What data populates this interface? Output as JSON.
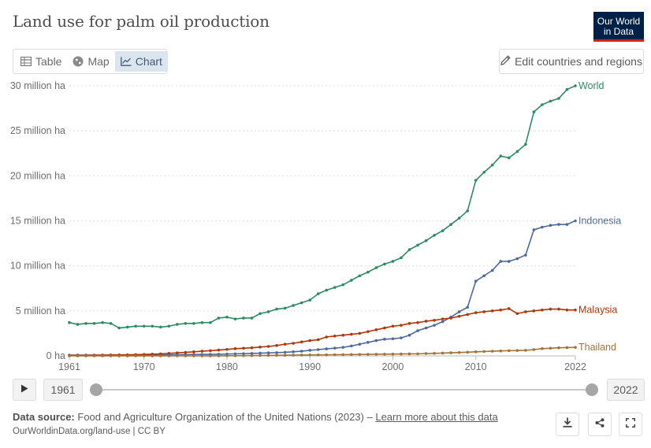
{
  "header": {
    "title": "Land use for palm oil production",
    "logo_line1": "Our World",
    "logo_line2": "in Data"
  },
  "tabs": [
    {
      "label": "Table",
      "icon": "table-icon",
      "active": false
    },
    {
      "label": "Map",
      "icon": "globe-icon",
      "active": false
    },
    {
      "label": "Chart",
      "icon": "line-chart-icon",
      "active": true
    }
  ],
  "edit_button": {
    "label": "Edit countries and regions",
    "icon": "pencil-icon"
  },
  "timeline": {
    "start_year": "1961",
    "end_year": "2022",
    "play_icon": "play-icon"
  },
  "footer": {
    "source_label": "Data source:",
    "source_text": "Food and Agriculture Organization of the United Nations (2023) –",
    "learn_more": "Learn more about this data",
    "url_text": "OurWorldinData.org/land-use | CC BY",
    "icons": [
      "download-icon",
      "share-icon",
      "fullscreen-icon"
    ]
  },
  "chart_data": {
    "type": "line",
    "title": "Land use for palm oil production",
    "xlabel": "",
    "ylabel": "",
    "x_range": [
      1961,
      2022
    ],
    "ylim": [
      0,
      30000000
    ],
    "y_ticks": [
      {
        "value": 0,
        "label": "0 ha"
      },
      {
        "value": 5000000,
        "label": "5 million ha"
      },
      {
        "value": 10000000,
        "label": "10 million ha"
      },
      {
        "value": 15000000,
        "label": "15 million ha"
      },
      {
        "value": 20000000,
        "label": "20 million ha"
      },
      {
        "value": 25000000,
        "label": "25 million ha"
      },
      {
        "value": 30000000,
        "label": "30 million ha"
      }
    ],
    "x_ticks": [
      1961,
      1970,
      1980,
      1990,
      2000,
      2010,
      2022
    ],
    "grid": "horizontal dotted",
    "legend": "end-of-line labels",
    "series": [
      {
        "name": "World",
        "color": "#2e8b61",
        "points": [
          [
            1961,
            3700000
          ],
          [
            1962,
            3500000
          ],
          [
            1963,
            3600000
          ],
          [
            1964,
            3600000
          ],
          [
            1965,
            3700000
          ],
          [
            1966,
            3600000
          ],
          [
            1967,
            3100000
          ],
          [
            1968,
            3200000
          ],
          [
            1969,
            3300000
          ],
          [
            1970,
            3300000
          ],
          [
            1971,
            3300000
          ],
          [
            1972,
            3200000
          ],
          [
            1973,
            3300000
          ],
          [
            1974,
            3500000
          ],
          [
            1975,
            3600000
          ],
          [
            1976,
            3600000
          ],
          [
            1977,
            3700000
          ],
          [
            1978,
            3700000
          ],
          [
            1979,
            4200000
          ],
          [
            1980,
            4300000
          ],
          [
            1981,
            4100000
          ],
          [
            1982,
            4200000
          ],
          [
            1983,
            4200000
          ],
          [
            1984,
            4700000
          ],
          [
            1985,
            4900000
          ],
          [
            1986,
            5200000
          ],
          [
            1987,
            5300000
          ],
          [
            1988,
            5600000
          ],
          [
            1989,
            5900000
          ],
          [
            1990,
            6200000
          ],
          [
            1991,
            6900000
          ],
          [
            1992,
            7300000
          ],
          [
            1993,
            7600000
          ],
          [
            1994,
            7900000
          ],
          [
            1995,
            8400000
          ],
          [
            1996,
            8900000
          ],
          [
            1997,
            9300000
          ],
          [
            1998,
            9800000
          ],
          [
            1999,
            10200000
          ],
          [
            2000,
            10500000
          ],
          [
            2001,
            10900000
          ],
          [
            2002,
            11800000
          ],
          [
            2003,
            12300000
          ],
          [
            2004,
            12800000
          ],
          [
            2005,
            13400000
          ],
          [
            2006,
            13900000
          ],
          [
            2007,
            14600000
          ],
          [
            2008,
            15300000
          ],
          [
            2009,
            16100000
          ],
          [
            2010,
            19500000
          ],
          [
            2011,
            20400000
          ],
          [
            2012,
            21200000
          ],
          [
            2013,
            22200000
          ],
          [
            2014,
            22000000
          ],
          [
            2015,
            22700000
          ],
          [
            2016,
            23500000
          ],
          [
            2017,
            27100000
          ],
          [
            2018,
            27900000
          ],
          [
            2019,
            28300000
          ],
          [
            2020,
            28600000
          ],
          [
            2021,
            29600000
          ],
          [
            2022,
            30000000
          ]
        ]
      },
      {
        "name": "Indonesia",
        "color": "#4c6a9c",
        "points": [
          [
            1961,
            80000
          ],
          [
            1962,
            80000
          ],
          [
            1963,
            80000
          ],
          [
            1964,
            80000
          ],
          [
            1965,
            80000
          ],
          [
            1966,
            90000
          ],
          [
            1967,
            90000
          ],
          [
            1968,
            90000
          ],
          [
            1969,
            100000
          ],
          [
            1970,
            100000
          ],
          [
            1971,
            110000
          ],
          [
            1972,
            110000
          ],
          [
            1973,
            120000
          ],
          [
            1974,
            130000
          ],
          [
            1975,
            140000
          ],
          [
            1976,
            150000
          ],
          [
            1977,
            160000
          ],
          [
            1978,
            170000
          ],
          [
            1979,
            180000
          ],
          [
            1980,
            200000
          ],
          [
            1981,
            230000
          ],
          [
            1982,
            250000
          ],
          [
            1983,
            270000
          ],
          [
            1984,
            300000
          ],
          [
            1985,
            330000
          ],
          [
            1986,
            360000
          ],
          [
            1987,
            400000
          ],
          [
            1988,
            450000
          ],
          [
            1989,
            520000
          ],
          [
            1990,
            620000
          ],
          [
            1991,
            700000
          ],
          [
            1992,
            780000
          ],
          [
            1993,
            860000
          ],
          [
            1994,
            950000
          ],
          [
            1995,
            1100000
          ],
          [
            1996,
            1300000
          ],
          [
            1997,
            1500000
          ],
          [
            1998,
            1700000
          ],
          [
            1999,
            1850000
          ],
          [
            2000,
            1900000
          ],
          [
            2001,
            2000000
          ],
          [
            2002,
            2300000
          ],
          [
            2003,
            2800000
          ],
          [
            2004,
            3100000
          ],
          [
            2005,
            3400000
          ],
          [
            2006,
            3800000
          ],
          [
            2007,
            4300000
          ],
          [
            2008,
            4900000
          ],
          [
            2009,
            5400000
          ],
          [
            2010,
            8300000
          ],
          [
            2011,
            8900000
          ],
          [
            2012,
            9500000
          ],
          [
            2013,
            10500000
          ],
          [
            2014,
            10500000
          ],
          [
            2015,
            10800000
          ],
          [
            2016,
            11200000
          ],
          [
            2017,
            14000000
          ],
          [
            2018,
            14300000
          ],
          [
            2019,
            14500000
          ],
          [
            2020,
            14600000
          ],
          [
            2021,
            14600000
          ],
          [
            2022,
            15000000
          ]
        ]
      },
      {
        "name": "Malaysia",
        "color": "#b13507",
        "points": [
          [
            1961,
            50000
          ],
          [
            1962,
            50000
          ],
          [
            1963,
            60000
          ],
          [
            1964,
            70000
          ],
          [
            1965,
            80000
          ],
          [
            1966,
            90000
          ],
          [
            1967,
            100000
          ],
          [
            1968,
            120000
          ],
          [
            1969,
            140000
          ],
          [
            1970,
            160000
          ],
          [
            1971,
            190000
          ],
          [
            1972,
            230000
          ],
          [
            1973,
            280000
          ],
          [
            1974,
            330000
          ],
          [
            1975,
            390000
          ],
          [
            1976,
            450000
          ],
          [
            1977,
            520000
          ],
          [
            1978,
            580000
          ],
          [
            1979,
            650000
          ],
          [
            1980,
            720000
          ],
          [
            1981,
            800000
          ],
          [
            1982,
            850000
          ],
          [
            1983,
            900000
          ],
          [
            1984,
            980000
          ],
          [
            1985,
            1050000
          ],
          [
            1986,
            1150000
          ],
          [
            1987,
            1300000
          ],
          [
            1988,
            1400000
          ],
          [
            1989,
            1550000
          ],
          [
            1990,
            1700000
          ],
          [
            1991,
            1800000
          ],
          [
            1992,
            2100000
          ],
          [
            1993,
            2200000
          ],
          [
            1994,
            2300000
          ],
          [
            1995,
            2400000
          ],
          [
            1996,
            2500000
          ],
          [
            1997,
            2700000
          ],
          [
            1998,
            2900000
          ],
          [
            1999,
            3100000
          ],
          [
            2000,
            3300000
          ],
          [
            2001,
            3400000
          ],
          [
            2002,
            3600000
          ],
          [
            2003,
            3700000
          ],
          [
            2004,
            3850000
          ],
          [
            2005,
            3950000
          ],
          [
            2006,
            4100000
          ],
          [
            2007,
            4200000
          ],
          [
            2008,
            4400000
          ],
          [
            2009,
            4600000
          ],
          [
            2010,
            4800000
          ],
          [
            2011,
            4900000
          ],
          [
            2012,
            5000000
          ],
          [
            2013,
            5100000
          ],
          [
            2014,
            5250000
          ],
          [
            2015,
            4700000
          ],
          [
            2016,
            4900000
          ],
          [
            2017,
            5000000
          ],
          [
            2018,
            5100000
          ],
          [
            2019,
            5200000
          ],
          [
            2020,
            5200000
          ],
          [
            2021,
            5100000
          ],
          [
            2022,
            5100000
          ]
        ]
      },
      {
        "name": "Thailand",
        "color": "#a2743a",
        "points": [
          [
            1961,
            0
          ],
          [
            1962,
            0
          ],
          [
            1963,
            0
          ],
          [
            1964,
            0
          ],
          [
            1965,
            0
          ],
          [
            1966,
            0
          ],
          [
            1967,
            0
          ],
          [
            1968,
            0
          ],
          [
            1969,
            0
          ],
          [
            1970,
            0
          ],
          [
            1971,
            0
          ],
          [
            1972,
            0
          ],
          [
            1973,
            0
          ],
          [
            1974,
            0
          ],
          [
            1975,
            0
          ],
          [
            1976,
            0
          ],
          [
            1977,
            0
          ],
          [
            1978,
            10000
          ],
          [
            1979,
            10000
          ],
          [
            1980,
            20000
          ],
          [
            1981,
            20000
          ],
          [
            1982,
            30000
          ],
          [
            1983,
            30000
          ],
          [
            1984,
            40000
          ],
          [
            1985,
            50000
          ],
          [
            1986,
            60000
          ],
          [
            1987,
            70000
          ],
          [
            1988,
            80000
          ],
          [
            1989,
            90000
          ],
          [
            1990,
            100000
          ],
          [
            1991,
            110000
          ],
          [
            1992,
            120000
          ],
          [
            1993,
            130000
          ],
          [
            1994,
            140000
          ],
          [
            1995,
            150000
          ],
          [
            1996,
            160000
          ],
          [
            1997,
            170000
          ],
          [
            1998,
            180000
          ],
          [
            1999,
            190000
          ],
          [
            2000,
            200000
          ],
          [
            2001,
            210000
          ],
          [
            2002,
            220000
          ],
          [
            2003,
            230000
          ],
          [
            2004,
            260000
          ],
          [
            2005,
            280000
          ],
          [
            2006,
            310000
          ],
          [
            2007,
            340000
          ],
          [
            2008,
            380000
          ],
          [
            2009,
            410000
          ],
          [
            2010,
            450000
          ],
          [
            2011,
            490000
          ],
          [
            2012,
            520000
          ],
          [
            2013,
            550000
          ],
          [
            2014,
            580000
          ],
          [
            2015,
            600000
          ],
          [
            2016,
            620000
          ],
          [
            2017,
            700000
          ],
          [
            2018,
            800000
          ],
          [
            2019,
            850000
          ],
          [
            2020,
            900000
          ],
          [
            2021,
            920000
          ],
          [
            2022,
            950000
          ]
        ]
      }
    ]
  }
}
